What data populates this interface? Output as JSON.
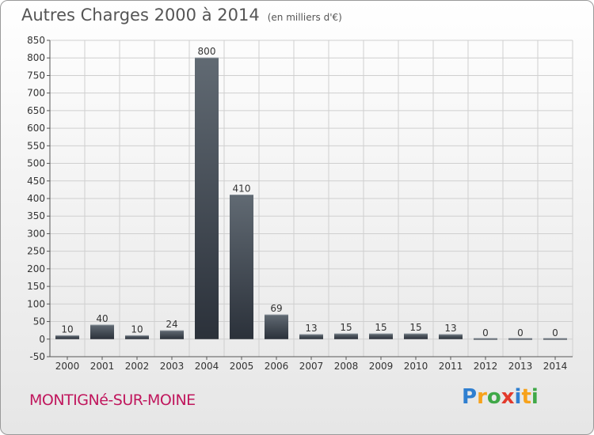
{
  "title": "Autres Charges 2000 à 2014",
  "subtitle": "(en milliers d'€)",
  "commune": "MONTIGNé-SUR-MOINE",
  "logo": {
    "letters": [
      "P",
      "r",
      "o",
      "x",
      "i",
      "t",
      "i"
    ],
    "colors": [
      "#2f7fd0",
      "#f7a21b",
      "#40a848",
      "#e23a2c",
      "#2f7fd0",
      "#f7a21b",
      "#40a848"
    ]
  },
  "colors": {
    "bar_dark": "#2b313a",
    "bar_light": "#616a73",
    "grid": "#cfcfcf",
    "commune": "#c0175d"
  },
  "chart_data": {
    "type": "bar",
    "title": "Autres Charges 2000 à 2014",
    "categories": [
      "2000",
      "2001",
      "2002",
      "2003",
      "2004",
      "2005",
      "2006",
      "2007",
      "2008",
      "2009",
      "2010",
      "2011",
      "2012",
      "2013",
      "2014"
    ],
    "values": [
      10,
      40,
      10,
      24,
      800,
      410,
      69,
      13,
      15,
      15,
      15,
      13,
      0,
      0,
      0
    ],
    "ylim": [
      -50,
      850
    ],
    "yticks": [
      -50,
      0,
      50,
      100,
      150,
      200,
      250,
      300,
      350,
      400,
      450,
      500,
      550,
      600,
      650,
      700,
      750,
      800,
      850
    ],
    "grid": true
  }
}
